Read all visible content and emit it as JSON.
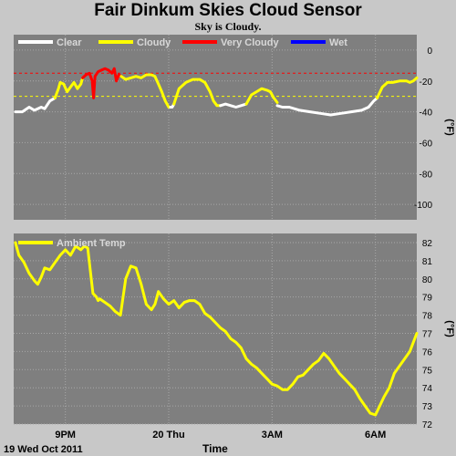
{
  "title": "Fair Dinkum Skies Cloud Sensor",
  "subtitle": "Sky is Cloudy.",
  "footer": {
    "date_label": "19 Wed Oct 2011",
    "x_axis_label": "Time"
  },
  "colors": {
    "page_background": "#c8c8c8",
    "plot_background": "#7f7f7f",
    "clear": "#ffffff",
    "cloudy": "#ffff00",
    "very_cloudy": "#ff0000",
    "wet": "#0000ff",
    "ambient": "#ffff00",
    "cloudy_threshold": "#ffff00",
    "very_cloudy_threshold": "#ff0000"
  },
  "chart_data": [
    {
      "type": "line",
      "id": "sky-temp",
      "ylabel": "(°F)",
      "ylim": [
        -110,
        10
      ],
      "yticks": [
        0,
        -20,
        -40,
        -60,
        -80,
        -100
      ],
      "x_range_hours": [
        19.5,
        31.2
      ],
      "x_ticks": [
        {
          "hour": 21,
          "label": "9PM"
        },
        {
          "hour": 24,
          "label": "20 Thu"
        },
        {
          "hour": 27,
          "label": "3AM"
        },
        {
          "hour": 30,
          "label": "6AM"
        }
      ],
      "grid": true,
      "legend_position": "top",
      "legend": [
        {
          "label": "Clear",
          "color": "#ffffff"
        },
        {
          "label": "Cloudy",
          "color": "#ffff00"
        },
        {
          "label": "Very Cloudy",
          "color": "#ff0000"
        },
        {
          "label": "Wet",
          "color": "#0000ff"
        }
      ],
      "thresholds": [
        {
          "value": -15,
          "color": "#ff0000"
        },
        {
          "value": -30,
          "color": "#ffff00"
        }
      ],
      "series": [
        {
          "name": "Clear",
          "color": "#ffffff",
          "x": [
            19.55,
            19.75,
            19.95,
            20.1,
            20.2,
            20.3,
            20.4,
            20.55,
            20.7
          ],
          "y": [
            -40,
            -40,
            -37,
            -39,
            -38,
            -37,
            -38,
            -33,
            -31
          ]
        },
        {
          "name": "Cloudy",
          "color": "#ffff00",
          "x": [
            20.7,
            20.8,
            20.85,
            20.95,
            21.05,
            21.15,
            21.25,
            21.35,
            21.45,
            21.5
          ],
          "y": [
            -31,
            -25,
            -21,
            -22,
            -27,
            -24,
            -21,
            -25,
            -22,
            -18
          ]
        },
        {
          "name": "Very Cloudy",
          "color": "#ff0000",
          "x": [
            21.5,
            21.6,
            21.7,
            21.78,
            21.82,
            21.86,
            21.95,
            22.05,
            22.15,
            22.25,
            22.35,
            22.42,
            22.48,
            22.55,
            22.62
          ],
          "y": [
            -18,
            -16,
            -15,
            -20,
            -31,
            -17,
            -14,
            -13,
            -12,
            -13,
            -15,
            -12,
            -20,
            -16,
            -17
          ]
        },
        {
          "name": "Cloudy",
          "color": "#ffff00",
          "x": [
            22.62,
            22.75,
            22.9,
            23.05,
            23.2,
            23.35,
            23.5,
            23.6,
            23.7,
            23.8,
            23.9,
            24.0,
            24.05
          ],
          "y": [
            -17,
            -19,
            -18,
            -17,
            -18,
            -16,
            -16,
            -17,
            -22,
            -27,
            -33,
            -37,
            -37
          ]
        },
        {
          "name": "Clear",
          "color": "#ffffff",
          "x": [
            24.05,
            24.1,
            24.15
          ],
          "y": [
            -37,
            -37,
            -35
          ]
        },
        {
          "name": "Cloudy",
          "color": "#ffff00",
          "x": [
            24.15,
            24.3,
            24.5,
            24.7,
            24.9,
            25.05,
            25.2,
            25.3,
            25.4,
            25.5
          ],
          "y": [
            -35,
            -25,
            -21,
            -19,
            -19,
            -21,
            -27,
            -33,
            -36,
            -36
          ]
        },
        {
          "name": "Clear",
          "color": "#ffffff",
          "x": [
            25.5,
            25.65,
            25.8,
            25.95,
            26.1,
            26.25
          ],
          "y": [
            -36,
            -35,
            -36,
            -37,
            -36,
            -35
          ]
        },
        {
          "name": "Cloudy",
          "color": "#ffff00",
          "x": [
            26.25,
            26.4,
            26.55,
            26.7,
            26.85,
            26.95,
            27.05,
            27.15
          ],
          "y": [
            -35,
            -29,
            -27,
            -25,
            -26,
            -27,
            -31,
            -34
          ]
        },
        {
          "name": "Clear",
          "color": "#ffffff",
          "x": [
            27.15,
            27.3,
            27.5,
            27.8,
            28.1,
            28.4,
            28.7,
            29.0,
            29.3,
            29.6,
            29.8,
            29.95,
            30.05
          ],
          "y": [
            -36,
            -37,
            -37,
            -39,
            -40,
            -41,
            -42,
            -41,
            -40,
            -39,
            -37,
            -33,
            -31
          ]
        },
        {
          "name": "Cloudy",
          "color": "#ffff00",
          "x": [
            30.05,
            30.2,
            30.35,
            30.5,
            30.7,
            30.9,
            31.0,
            31.1,
            31.2
          ],
          "y": [
            -31,
            -24,
            -21,
            -21,
            -20,
            -20,
            -21,
            -20,
            -18
          ]
        }
      ]
    },
    {
      "type": "line",
      "id": "ambient-temp",
      "ylabel": "(°F)",
      "ylim": [
        72,
        82.5
      ],
      "yticks": [
        72,
        73,
        74,
        75,
        76,
        77,
        78,
        79,
        80,
        81,
        82
      ],
      "x_range_hours": [
        19.5,
        31.2
      ],
      "x_ticks": [
        {
          "hour": 21,
          "label": "9PM"
        },
        {
          "hour": 24,
          "label": "20 Thu"
        },
        {
          "hour": 27,
          "label": "3AM"
        },
        {
          "hour": 30,
          "label": "6AM"
        }
      ],
      "grid": true,
      "legend_position": "top",
      "legend": [
        {
          "label": "Ambient Temp",
          "color": "#ffff00"
        }
      ],
      "series": [
        {
          "name": "Ambient Temp",
          "color": "#ffff00",
          "x": [
            19.55,
            19.65,
            19.8,
            19.95,
            20.1,
            20.2,
            20.3,
            20.4,
            20.55,
            20.7,
            20.85,
            21.0,
            21.15,
            21.3,
            21.45,
            21.55,
            21.65,
            21.8,
            21.9,
            21.95,
            22.0,
            22.15,
            22.3,
            22.45,
            22.6,
            22.75,
            22.9,
            23.05,
            23.2,
            23.35,
            23.5,
            23.6,
            23.7,
            23.85,
            24.0,
            24.15,
            24.3,
            24.45,
            24.6,
            24.75,
            24.9,
            25.05,
            25.2,
            25.35,
            25.5,
            25.65,
            25.8,
            25.95,
            26.1,
            26.25,
            26.4,
            26.55,
            26.7,
            26.85,
            27.0,
            27.15,
            27.3,
            27.45,
            27.6,
            27.75,
            27.9,
            28.05,
            28.2,
            28.35,
            28.5,
            28.65,
            28.8,
            28.95,
            29.1,
            29.25,
            29.4,
            29.55,
            29.7,
            29.85,
            30.0,
            30.1,
            30.25,
            30.4,
            30.55,
            30.7,
            30.85,
            31.0,
            31.1,
            31.2
          ],
          "y": [
            82,
            81.3,
            80.9,
            80.3,
            79.9,
            79.7,
            80.1,
            80.6,
            80.5,
            80.9,
            81.3,
            81.6,
            81.3,
            81.8,
            81.6,
            81.8,
            81.7,
            79.2,
            79.0,
            78.8,
            78.9,
            78.7,
            78.5,
            78.2,
            78.0,
            80.0,
            80.7,
            80.6,
            79.7,
            78.6,
            78.3,
            78.6,
            79.3,
            78.9,
            78.6,
            78.8,
            78.4,
            78.7,
            78.8,
            78.8,
            78.6,
            78.1,
            77.9,
            77.6,
            77.3,
            77.1,
            76.7,
            76.5,
            76.2,
            75.6,
            75.3,
            75.1,
            74.8,
            74.5,
            74.2,
            74.1,
            73.9,
            73.9,
            74.2,
            74.6,
            74.7,
            75.0,
            75.3,
            75.5,
            75.9,
            75.6,
            75.2,
            74.8,
            74.5,
            74.2,
            73.9,
            73.4,
            73.0,
            72.6,
            72.5,
            72.9,
            73.5,
            74.0,
            74.8,
            75.2,
            75.6,
            76.0,
            76.5,
            77.0
          ]
        }
      ]
    }
  ]
}
